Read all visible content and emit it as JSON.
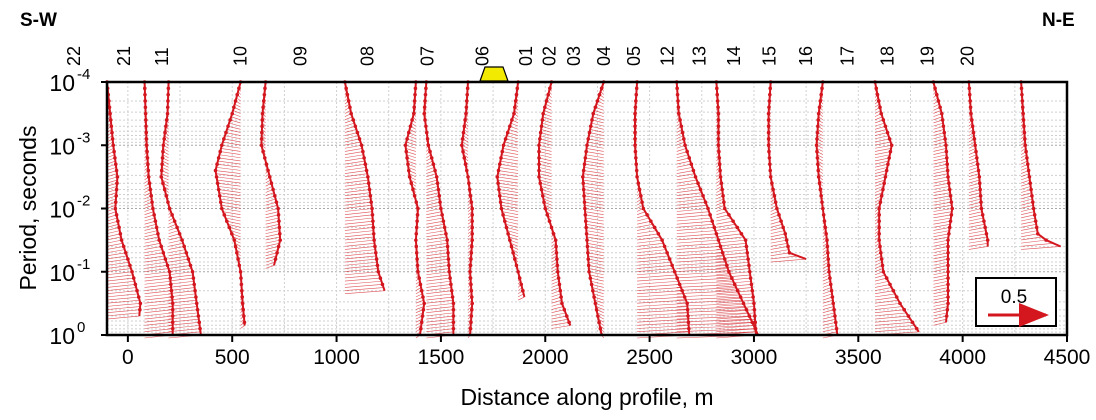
{
  "header": {
    "left_label": "S-W",
    "right_label": "N-E"
  },
  "chart_data": {
    "type": "vector-profile",
    "title": "",
    "xlabel": "Distance along profile, m",
    "ylabel": "Period, seconds",
    "xlim": [
      -100,
      4500
    ],
    "xticks": [
      "0",
      "500",
      "1000",
      "1500",
      "2000",
      "2500",
      "3000",
      "3500",
      "4000",
      "4500"
    ],
    "ylim_log10": [
      -4,
      0
    ],
    "y_scale": "log",
    "yticks": [
      {
        "base": "10",
        "exp": "-4",
        "value": 0.0001
      },
      {
        "base": "10",
        "exp": "-3",
        "value": 0.001
      },
      {
        "base": "10",
        "exp": "-2",
        "value": 0.01
      },
      {
        "base": "10",
        "exp": "-1",
        "value": 0.1
      },
      {
        "base": "10",
        "exp": "0",
        "value": 1
      }
    ],
    "grid": true,
    "vector_color": "#d4171f",
    "marker_color": "#d4171f",
    "stations": [
      {
        "label": "22",
        "x": 120,
        "curve": [
          [
            -100,
            -4
          ],
          [
            -70,
            -3
          ],
          [
            -50,
            -2.5
          ],
          [
            -60,
            -2
          ],
          [
            -30,
            -1.5
          ],
          [
            20,
            -1
          ],
          [
            60,
            -0.5
          ],
          [
            55,
            -0.3
          ]
        ]
      },
      {
        "label": "21",
        "x": 195,
        "curve": [
          [
            80,
            -4
          ],
          [
            85,
            -3.5
          ],
          [
            90,
            -3
          ],
          [
            100,
            -2.5
          ],
          [
            120,
            -2
          ],
          [
            150,
            -1.5
          ],
          [
            200,
            -1
          ],
          [
            215,
            -0.5
          ],
          [
            215,
            0
          ]
        ]
      },
      {
        "label": "11",
        "x": 252,
        "curve": [
          [
            195,
            -4
          ],
          [
            190,
            -3.5
          ],
          [
            170,
            -3
          ],
          [
            160,
            -2.5
          ],
          [
            200,
            -2
          ],
          [
            260,
            -1.5
          ],
          [
            310,
            -1
          ],
          [
            330,
            -0.5
          ],
          [
            350,
            0
          ]
        ]
      },
      {
        "label": "10",
        "x": 370,
        "curve": [
          [
            540,
            -4
          ],
          [
            500,
            -3.5
          ],
          [
            450,
            -3
          ],
          [
            420,
            -2.6
          ],
          [
            450,
            -2
          ],
          [
            510,
            -1.5
          ],
          [
            540,
            -1
          ],
          [
            550,
            -0.5
          ],
          [
            560,
            -0.15
          ]
        ]
      },
      {
        "label": "09",
        "x": 460,
        "curve": [
          [
            660,
            -4
          ],
          [
            645,
            -3.5
          ],
          [
            640,
            -3
          ],
          [
            680,
            -2.5
          ],
          [
            720,
            -2
          ],
          [
            730,
            -1.5
          ],
          [
            700,
            -1.1
          ]
        ]
      },
      {
        "label": "08",
        "x": 560,
        "curve": []
      },
      {
        "label": "07",
        "x": 650,
        "curve": [
          [
            1040,
            -4
          ],
          [
            1070,
            -3.5
          ],
          [
            1120,
            -3
          ],
          [
            1150,
            -2.5
          ],
          [
            1170,
            -2
          ],
          [
            1180,
            -1.5
          ],
          [
            1200,
            -1
          ],
          [
            1230,
            -0.7
          ]
        ]
      },
      {
        "label": "06",
        "x": 733,
        "curve": [
          [
            1380,
            -4
          ],
          [
            1370,
            -3.5
          ],
          [
            1330,
            -3
          ],
          [
            1350,
            -2.5
          ],
          [
            1390,
            -2
          ],
          [
            1380,
            -1.5
          ],
          [
            1390,
            -1
          ],
          [
            1420,
            -0.5
          ],
          [
            1400,
            0
          ]
        ]
      },
      {
        "label": "01",
        "x": 798,
        "curve": [
          [
            1430,
            -4
          ],
          [
            1420,
            -3.5
          ],
          [
            1440,
            -3
          ],
          [
            1480,
            -2.5
          ],
          [
            1500,
            -2
          ],
          [
            1530,
            -1.5
          ],
          [
            1540,
            -1
          ],
          [
            1560,
            -0.5
          ],
          [
            1560,
            0
          ]
        ]
      },
      {
        "label": "02",
        "x": 833,
        "curve": [
          [
            1630,
            -4
          ],
          [
            1620,
            -3.5
          ],
          [
            1600,
            -3
          ],
          [
            1630,
            -2.5
          ],
          [
            1650,
            -2
          ],
          [
            1650,
            -1.5
          ],
          [
            1640,
            -1
          ],
          [
            1650,
            -0.5
          ],
          [
            1640,
            0
          ]
        ]
      },
      {
        "label": "03",
        "x": 870,
        "curve": [
          [
            1870,
            -4
          ],
          [
            1850,
            -3.5
          ],
          [
            1800,
            -3
          ],
          [
            1770,
            -2.5
          ],
          [
            1790,
            -2
          ],
          [
            1830,
            -1.5
          ],
          [
            1870,
            -1
          ],
          [
            1900,
            -0.6
          ]
        ]
      },
      {
        "label": "04",
        "x": 915,
        "curve": [
          [
            2030,
            -4
          ],
          [
            1990,
            -3.5
          ],
          [
            1970,
            -3
          ],
          [
            1970,
            -2.5
          ],
          [
            2000,
            -2
          ],
          [
            2050,
            -1.5
          ],
          [
            2060,
            -1
          ],
          [
            2080,
            -0.5
          ],
          [
            2120,
            -0.15
          ]
        ]
      },
      {
        "label": "05",
        "x": 960,
        "curve": [
          [
            2280,
            -4
          ],
          [
            2230,
            -3.5
          ],
          [
            2200,
            -3
          ],
          [
            2180,
            -2.5
          ],
          [
            2190,
            -2
          ],
          [
            2200,
            -1.5
          ],
          [
            2210,
            -1
          ],
          [
            2240,
            -0.5
          ],
          [
            2270,
            0
          ]
        ]
      },
      {
        "label": "12",
        "x": 1010,
        "curve": [
          [
            2440,
            -4
          ],
          [
            2430,
            -3.5
          ],
          [
            2430,
            -3
          ],
          [
            2440,
            -2.5
          ],
          [
            2470,
            -2
          ],
          [
            2560,
            -1.5
          ],
          [
            2620,
            -1
          ],
          [
            2680,
            -0.5
          ],
          [
            2690,
            0
          ]
        ]
      },
      {
        "label": "13",
        "x": 1058,
        "curve": [
          [
            2630,
            -4
          ],
          [
            2640,
            -3.5
          ],
          [
            2670,
            -3
          ],
          [
            2720,
            -2.5
          ],
          [
            2780,
            -2
          ],
          [
            2830,
            -1.5
          ],
          [
            2880,
            -1
          ],
          [
            2950,
            -0.5
          ],
          [
            3020,
            0
          ]
        ]
      },
      {
        "label": "14",
        "x": 1110,
        "curve": [
          [
            2820,
            -4
          ],
          [
            2830,
            -3.5
          ],
          [
            2830,
            -3
          ],
          [
            2840,
            -2.5
          ],
          [
            2860,
            -2
          ],
          [
            2960,
            -1.5
          ],
          [
            2980,
            -1
          ],
          [
            3000,
            -0.5
          ],
          [
            3010,
            0
          ]
        ]
      },
      {
        "label": "15",
        "x": 1163,
        "curve": [
          [
            3080,
            -4
          ],
          [
            3070,
            -3.5
          ],
          [
            3070,
            -3
          ],
          [
            3080,
            -2.5
          ],
          [
            3110,
            -2
          ],
          [
            3150,
            -1.6
          ],
          [
            3170,
            -1.3
          ],
          [
            3250,
            -1.2
          ]
        ]
      },
      {
        "label": "16",
        "x": 1218,
        "curve": [
          [
            3330,
            -4
          ],
          [
            3310,
            -3.5
          ],
          [
            3300,
            -3
          ],
          [
            3310,
            -2.5
          ],
          [
            3330,
            -2
          ],
          [
            3350,
            -1.5
          ],
          [
            3360,
            -1
          ],
          [
            3380,
            -0.5
          ],
          [
            3400,
            0
          ]
        ]
      },
      {
        "label": "17",
        "x": 1280,
        "curve": [
          [
            3580,
            -4
          ],
          [
            3610,
            -3.5
          ],
          [
            3660,
            -3
          ],
          [
            3630,
            -2.5
          ],
          [
            3600,
            -2
          ],
          [
            3600,
            -1.5
          ],
          [
            3620,
            -1
          ],
          [
            3700,
            -0.5
          ],
          [
            3790,
            -0.05
          ]
        ]
      },
      {
        "label": "18",
        "x": 1340,
        "curve": [
          [
            3860,
            -4
          ],
          [
            3900,
            -3.5
          ],
          [
            3920,
            -3
          ],
          [
            3930,
            -2.5
          ],
          [
            3950,
            -2
          ],
          [
            3930,
            -1.5
          ],
          [
            3930,
            -1
          ],
          [
            3930,
            -0.5
          ],
          [
            3920,
            -0.2
          ]
        ]
      },
      {
        "label": "19",
        "x": 1400,
        "curve": [
          [
            4030,
            -4
          ],
          [
            4040,
            -3.5
          ],
          [
            4060,
            -3
          ],
          [
            4080,
            -2.5
          ],
          [
            4090,
            -2
          ],
          [
            4120,
            -1.5
          ],
          [
            4120,
            -1.4
          ]
        ]
      },
      {
        "label": "20",
        "x": 1460,
        "curve": [
          [
            4280,
            -4
          ],
          [
            4290,
            -3.5
          ],
          [
            4300,
            -3
          ],
          [
            4320,
            -2.5
          ],
          [
            4340,
            -2
          ],
          [
            4360,
            -1.6
          ],
          [
            4400,
            -1.5
          ],
          [
            4470,
            -1.4
          ]
        ]
      }
    ],
    "marker": {
      "near_station": "03"
    },
    "legend": {
      "value": "0.5",
      "placement": "bottom-right"
    }
  }
}
